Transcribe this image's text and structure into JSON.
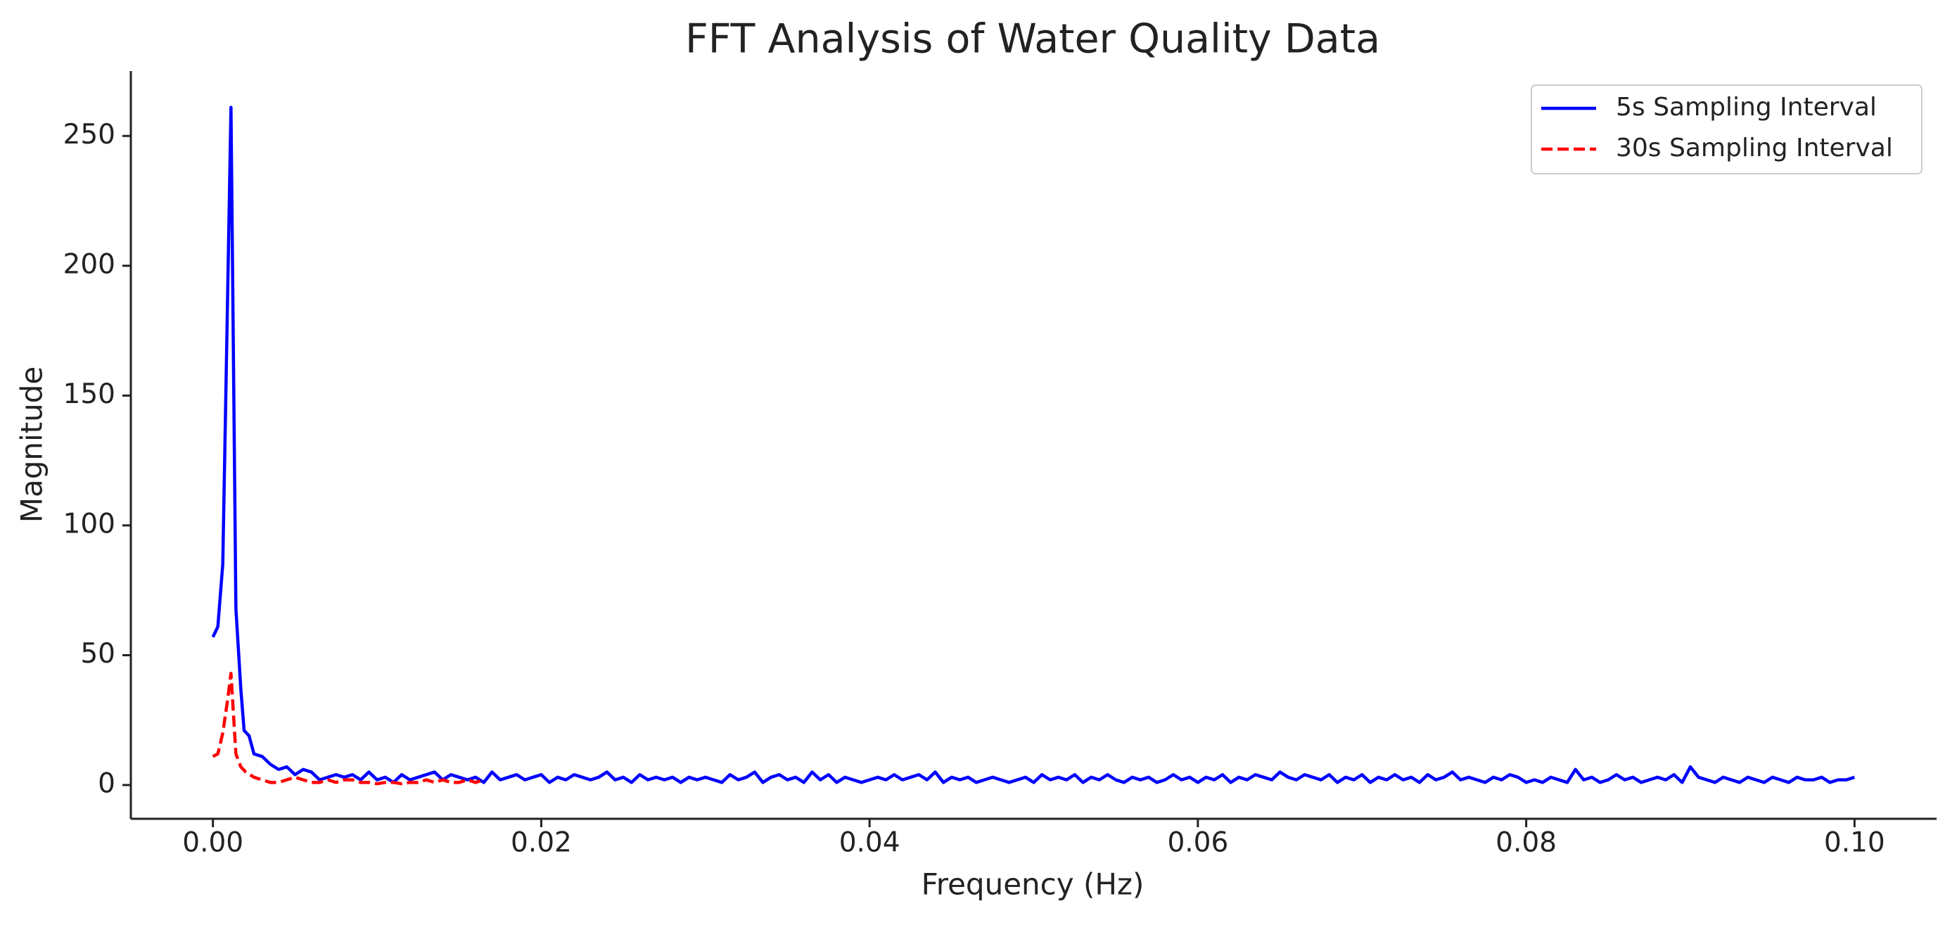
{
  "chart_data": {
    "type": "line",
    "title": "FFT Analysis of Water Quality Data",
    "xlabel": "Frequency (Hz)",
    "ylabel": "Magnitude",
    "xlim": [
      -0.005,
      0.105
    ],
    "ylim": [
      -13,
      275
    ],
    "xticks": [
      {
        "value": 0,
        "label": "0.00"
      },
      {
        "value": 0.02,
        "label": "0.02"
      },
      {
        "value": 0.04,
        "label": "0.04"
      },
      {
        "value": 0.06,
        "label": "0.06"
      },
      {
        "value": 0.08,
        "label": "0.08"
      },
      {
        "value": 0.1,
        "label": "0.10"
      }
    ],
    "yticks": [
      0,
      50,
      100,
      150,
      200,
      250
    ],
    "grid": false,
    "legend": "upper right",
    "series": [
      {
        "name": "5s Sampling Interval",
        "color": "#0000ff",
        "dash": false,
        "x": [
          0,
          0.0003,
          0.0006,
          0.0009,
          0.0011,
          0.0014,
          0.0017,
          0.0019,
          0.0022,
          0.0025,
          0.003,
          0.0035,
          0.004,
          0.0045,
          0.005,
          0.0055,
          0.006,
          0.0065,
          0.007,
          0.0075,
          0.008,
          0.0085,
          0.009,
          0.0095,
          0.01,
          0.0105,
          0.011,
          0.0115,
          0.012,
          0.0125,
          0.013,
          0.0135,
          0.014,
          0.0145,
          0.015,
          0.0155,
          0.016,
          0.0165,
          0.017,
          0.0175,
          0.018,
          0.0185,
          0.019,
          0.0195,
          0.02,
          0.0205,
          0.021,
          0.0215,
          0.022,
          0.0225,
          0.023,
          0.0235,
          0.024,
          0.0245,
          0.025,
          0.0255,
          0.026,
          0.0265,
          0.027,
          0.0275,
          0.028,
          0.0285,
          0.029,
          0.0295,
          0.03,
          0.0305,
          0.031,
          0.0315,
          0.032,
          0.0325,
          0.033,
          0.0335,
          0.034,
          0.0345,
          0.035,
          0.0355,
          0.036,
          0.0365,
          0.037,
          0.0375,
          0.038,
          0.0385,
          0.039,
          0.0395,
          0.04,
          0.0405,
          0.041,
          0.0415,
          0.042,
          0.0425,
          0.043,
          0.0435,
          0.044,
          0.0445,
          0.045,
          0.0455,
          0.046,
          0.0465,
          0.047,
          0.0475,
          0.048,
          0.0485,
          0.049,
          0.0495,
          0.05,
          0.0505,
          0.051,
          0.0515,
          0.052,
          0.0525,
          0.053,
          0.0535,
          0.054,
          0.0545,
          0.055,
          0.0555,
          0.056,
          0.0565,
          0.057,
          0.0575,
          0.058,
          0.0585,
          0.059,
          0.0595,
          0.06,
          0.0605,
          0.061,
          0.0615,
          0.062,
          0.0625,
          0.063,
          0.0635,
          0.064,
          0.0645,
          0.065,
          0.0655,
          0.066,
          0.0665,
          0.067,
          0.0675,
          0.068,
          0.0685,
          0.069,
          0.0695,
          0.07,
          0.0705,
          0.071,
          0.0715,
          0.072,
          0.0725,
          0.073,
          0.0735,
          0.074,
          0.0745,
          0.075,
          0.0755,
          0.076,
          0.0765,
          0.077,
          0.0775,
          0.078,
          0.0785,
          0.079,
          0.0795,
          0.08,
          0.0805,
          0.081,
          0.0815,
          0.082,
          0.0825,
          0.083,
          0.0835,
          0.084,
          0.0845,
          0.085,
          0.0855,
          0.086,
          0.0865,
          0.087,
          0.0875,
          0.088,
          0.0885,
          0.089,
          0.0895,
          0.09,
          0.0905,
          0.091,
          0.0915,
          0.092,
          0.0925,
          0.093,
          0.0935,
          0.094,
          0.0945,
          0.095,
          0.0955,
          0.096,
          0.0965,
          0.097,
          0.0975,
          0.098,
          0.0985,
          0.099,
          0.0995,
          0.1
        ],
        "values": [
          57,
          61,
          85,
          190,
          261,
          68,
          37,
          21,
          19,
          12,
          11,
          8,
          6,
          7,
          4,
          6,
          5,
          2,
          3,
          4,
          3,
          4,
          2,
          5,
          2,
          3,
          1,
          4,
          2,
          3,
          4,
          5,
          2,
          4,
          3,
          2,
          3,
          1,
          5,
          2,
          3,
          4,
          2,
          3,
          4,
          1,
          3,
          2,
          4,
          3,
          2,
          3,
          5,
          2,
          3,
          1,
          4,
          2,
          3,
          2,
          3,
          1,
          3,
          2,
          3,
          2,
          1,
          4,
          2,
          3,
          5,
          1,
          3,
          4,
          2,
          3,
          1,
          5,
          2,
          4,
          1,
          3,
          2,
          1,
          2,
          3,
          2,
          4,
          2,
          3,
          4,
          2,
          5,
          1,
          3,
          2,
          3,
          1,
          2,
          3,
          2,
          1,
          2,
          3,
          1,
          4,
          2,
          3,
          2,
          4,
          1,
          3,
          2,
          4,
          2,
          1,
          3,
          2,
          3,
          1,
          2,
          4,
          2,
          3,
          1,
          3,
          2,
          4,
          1,
          3,
          2,
          4,
          3,
          2,
          5,
          3,
          2,
          4,
          3,
          2,
          4,
          1,
          3,
          2,
          4,
          1,
          3,
          2,
          4,
          2,
          3,
          1,
          4,
          2,
          3,
          5,
          2,
          3,
          2,
          1,
          3,
          2,
          4,
          3,
          1,
          2,
          1,
          3,
          2,
          1,
          6,
          2,
          3,
          1,
          2,
          4,
          2,
          3,
          1,
          2,
          3,
          2,
          4,
          1,
          7,
          3,
          2,
          1,
          3,
          2,
          1,
          3,
          2,
          1,
          3,
          2,
          1,
          3,
          2,
          2,
          3,
          1,
          2,
          2,
          3
        ]
      },
      {
        "name": "30s Sampling Interval",
        "color": "#ff0000",
        "dash": true,
        "x": [
          0,
          0.0003,
          0.0006,
          0.0009,
          0.0011,
          0.0014,
          0.0017,
          0.002,
          0.0025,
          0.003,
          0.0035,
          0.004,
          0.0045,
          0.005,
          0.0055,
          0.006,
          0.0065,
          0.007,
          0.0075,
          0.008,
          0.0085,
          0.009,
          0.0095,
          0.01,
          0.0105,
          0.011,
          0.0115,
          0.012,
          0.0125,
          0.013,
          0.0135,
          0.014,
          0.0145,
          0.015,
          0.0155,
          0.016,
          0.0165
        ],
        "values": [
          11,
          12,
          20,
          33,
          43,
          12,
          7,
          5,
          3,
          2,
          1,
          1,
          2,
          3,
          2,
          1,
          1,
          2,
          1,
          2,
          2,
          1,
          1,
          0.5,
          1,
          1,
          0.5,
          1,
          1,
          2,
          1,
          2,
          1,
          1,
          2,
          1,
          2
        ]
      }
    ]
  }
}
